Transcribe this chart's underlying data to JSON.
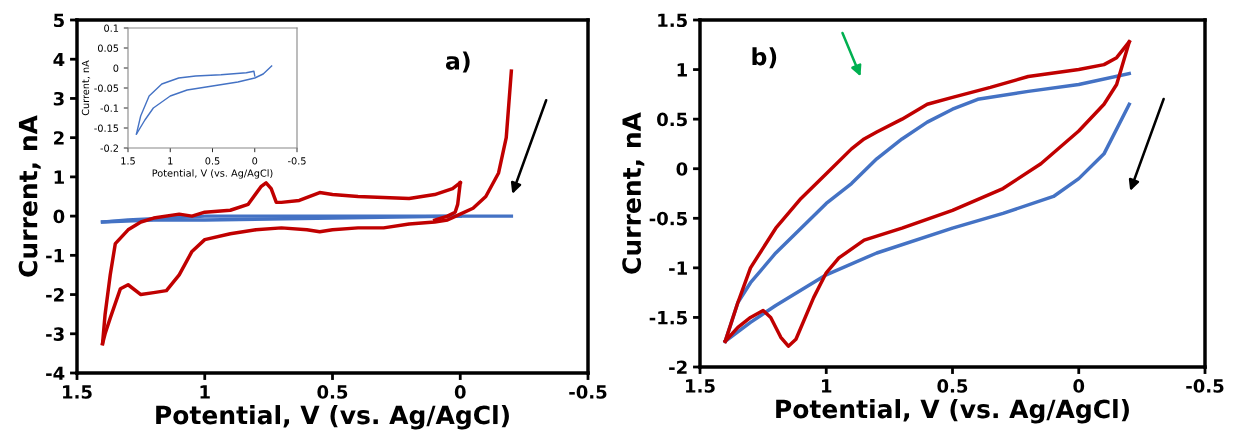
{
  "chart_data": [
    {
      "type": "line",
      "annotations": [
        "a)"
      ],
      "xlabel": "Potential, V (vs. Ag/AgCl)",
      "ylabel": "Current, nA",
      "xlim": [
        1.5,
        -0.5
      ],
      "xticks": [
        1.5,
        1,
        0.5,
        0,
        -0.5
      ],
      "ylim": [
        -4,
        5
      ],
      "yticks": [
        -4,
        -3,
        -2,
        -1,
        0,
        1,
        2,
        3,
        4,
        5
      ],
      "grid": false,
      "legend": false,
      "marker": "none",
      "line_style": "solid",
      "series": [
        {
          "color": "#4472c4",
          "x": [
            1.4,
            1.2,
            1.0,
            0.5,
            0,
            -0.2
          ],
          "values": [
            -0.15,
            -0.1,
            -0.1,
            -0.05,
            0,
            0
          ]
        },
        {
          "color": "#4472c4",
          "x": [
            0,
            0.5,
            1.0,
            1.3,
            1.4
          ],
          "values": [
            0,
            0,
            0,
            -0.1,
            -0.15
          ]
        },
        {
          "color": "#c00000",
          "x": [
            -0.2,
            -0.18,
            -0.15,
            -0.1,
            -0.05,
            0,
            0.05,
            0.1,
            0.2,
            0.3,
            0.4,
            0.5,
            0.55,
            0.6,
            0.7,
            0.8,
            0.9,
            1.0,
            1.05,
            1.1,
            1.15,
            1.2,
            1.25,
            1.3,
            1.33,
            1.37,
            1.39,
            1.4
          ],
          "values": [
            3.7,
            2.0,
            1.1,
            0.5,
            0.2,
            0.05,
            -0.1,
            -0.15,
            -0.2,
            -0.3,
            -0.3,
            -0.35,
            -0.4,
            -0.35,
            -0.3,
            -0.35,
            -0.45,
            -0.6,
            -0.9,
            -1.5,
            -1.9,
            -1.95,
            -2.0,
            -1.75,
            -1.85,
            -2.6,
            -3.0,
            -3.25
          ]
        },
        {
          "color": "#c00000",
          "x": [
            1.4,
            1.39,
            1.37,
            1.35,
            1.3,
            1.25,
            1.2,
            1.1,
            1.05,
            1.0,
            0.9,
            0.83,
            0.78,
            0.76,
            0.74,
            0.72,
            0.7,
            0.63,
            0.55,
            0.5,
            0.4,
            0.2,
            0.1,
            0.03,
            0
          ],
          "values": [
            -3.25,
            -2.5,
            -1.5,
            -0.7,
            -0.35,
            -0.15,
            -0.05,
            0.05,
            0.0,
            0.1,
            0.15,
            0.3,
            0.75,
            0.85,
            0.7,
            0.35,
            0.35,
            0.4,
            0.6,
            0.55,
            0.5,
            0.45,
            0.55,
            0.7,
            0.85
          ]
        },
        {
          "color": "#c00000",
          "x": [
            0,
            0.01,
            0.02,
            0.05,
            0.1
          ],
          "values": [
            0.85,
            0.3,
            0.1,
            0.0,
            -0.1
          ]
        }
      ]
    },
    {
      "type": "line",
      "xlabel": "Potential, V (vs. Ag/AgCl)",
      "ylabel": "Current, nA",
      "xlim": [
        1.5,
        -0.5
      ],
      "xticks": [
        1.5,
        1,
        0.5,
        0,
        -0.5
      ],
      "ylim": [
        -0.2,
        0.1
      ],
      "yticks": [
        -0.2,
        -0.15,
        -0.1,
        -0.05,
        0,
        0.05,
        0.1
      ],
      "grid": false,
      "legend": false,
      "marker": "none",
      "line_style": "solid",
      "series": [
        {
          "color": "#4472c4",
          "x": [
            1.4,
            1.3,
            1.2,
            1.0,
            0.8,
            0.5,
            0.2,
            0,
            -0.1,
            -0.2
          ],
          "values": [
            -0.165,
            -0.13,
            -0.1,
            -0.07,
            -0.055,
            -0.045,
            -0.035,
            -0.025,
            -0.015,
            0.005
          ]
        },
        {
          "color": "#4472c4",
          "x": [
            0,
            0.01,
            0.1,
            0.4,
            0.7,
            0.9,
            1.1,
            1.25,
            1.35,
            1.4
          ],
          "values": [
            -0.02,
            -0.008,
            -0.012,
            -0.017,
            -0.02,
            -0.025,
            -0.04,
            -0.07,
            -0.12,
            -0.165
          ]
        }
      ]
    },
    {
      "type": "line",
      "annotations": [
        "b)"
      ],
      "xlabel": "Potential, V (vs. Ag/AgCl)",
      "ylabel": "Current, nA",
      "xlim": [
        1.5,
        -0.5
      ],
      "xticks": [
        1.5,
        1,
        0.5,
        0,
        -0.5
      ],
      "ylim": [
        -2,
        1.5
      ],
      "yticks": [
        -2,
        -1.5,
        -1,
        -0.5,
        0,
        0.5,
        1,
        1.5
      ],
      "grid": false,
      "legend": false,
      "marker": "none",
      "line_style": "solid",
      "series": [
        {
          "color": "#4472c4",
          "x": [
            -0.2,
            0,
            0.2,
            0.4,
            0.5,
            0.6,
            0.7,
            0.8,
            0.9,
            1.0,
            1.1,
            1.2,
            1.3,
            1.35,
            1.4
          ],
          "values": [
            0.96,
            0.85,
            0.78,
            0.7,
            0.6,
            0.47,
            0.3,
            0.1,
            -0.15,
            -0.35,
            -0.6,
            -0.85,
            -1.15,
            -1.35,
            -1.74
          ]
        },
        {
          "color": "#4472c4",
          "x": [
            1.4,
            1.3,
            1.2,
            1.0,
            0.8,
            0.5,
            0.3,
            0.1,
            0,
            -0.1,
            -0.2
          ],
          "values": [
            -1.74,
            -1.55,
            -1.38,
            -1.07,
            -0.85,
            -0.6,
            -0.45,
            -0.28,
            -0.1,
            0.15,
            0.65
          ]
        },
        {
          "color": "#c00000",
          "x": [
            -0.2,
            -0.15,
            -0.1,
            0,
            0.2,
            0.35,
            0.5,
            0.6,
            0.7,
            0.8,
            0.85,
            0.9,
            1.0,
            1.1,
            1.2,
            1.3,
            1.35,
            1.4
          ],
          "values": [
            1.28,
            1.12,
            1.05,
            1.0,
            0.93,
            0.82,
            0.72,
            0.65,
            0.5,
            0.37,
            0.3,
            0.2,
            -0.05,
            -0.3,
            -0.6,
            -1.0,
            -1.35,
            -1.74
          ]
        },
        {
          "color": "#c00000",
          "x": [
            1.4,
            1.35,
            1.3,
            1.25,
            1.22,
            1.18,
            1.15,
            1.12,
            1.05,
            1.0,
            0.95,
            0.85,
            0.7,
            0.5,
            0.3,
            0.15,
            0,
            -0.1,
            -0.15,
            -0.2
          ],
          "values": [
            -1.74,
            -1.6,
            -1.5,
            -1.43,
            -1.5,
            -1.7,
            -1.79,
            -1.72,
            -1.3,
            -1.05,
            -0.9,
            -0.72,
            -0.6,
            -0.42,
            -0.2,
            0.05,
            0.38,
            0.65,
            0.85,
            1.28
          ]
        }
      ]
    }
  ]
}
